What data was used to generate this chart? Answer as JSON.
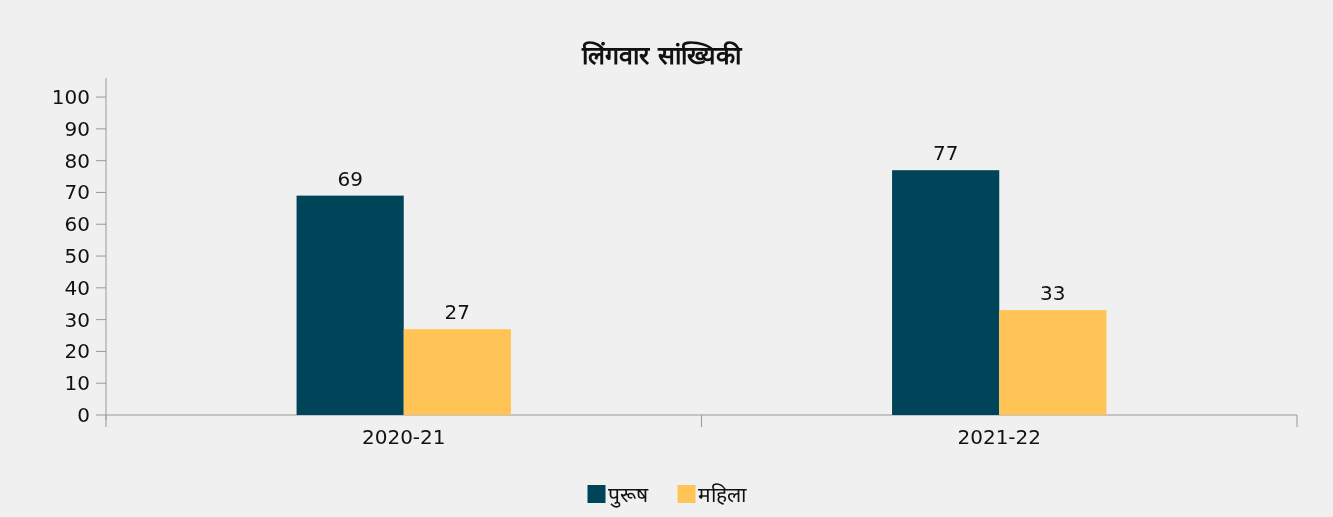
{
  "chart_data": {
    "type": "bar",
    "title": "लिंगवार सांख्यिकी",
    "categories": [
      "2020-21",
      "2021-22"
    ],
    "series": [
      {
        "name": "पुरूष",
        "color": "#004459",
        "values": [
          69,
          77
        ]
      },
      {
        "name": "महिला",
        "color": "#ffc455",
        "values": [
          27,
          33
        ]
      }
    ],
    "ylim": [
      0,
      106
    ],
    "yticks": [
      0,
      10,
      20,
      30,
      40,
      50,
      60,
      70,
      80,
      90,
      100
    ],
    "data_labels": true,
    "legend": "bottom"
  }
}
